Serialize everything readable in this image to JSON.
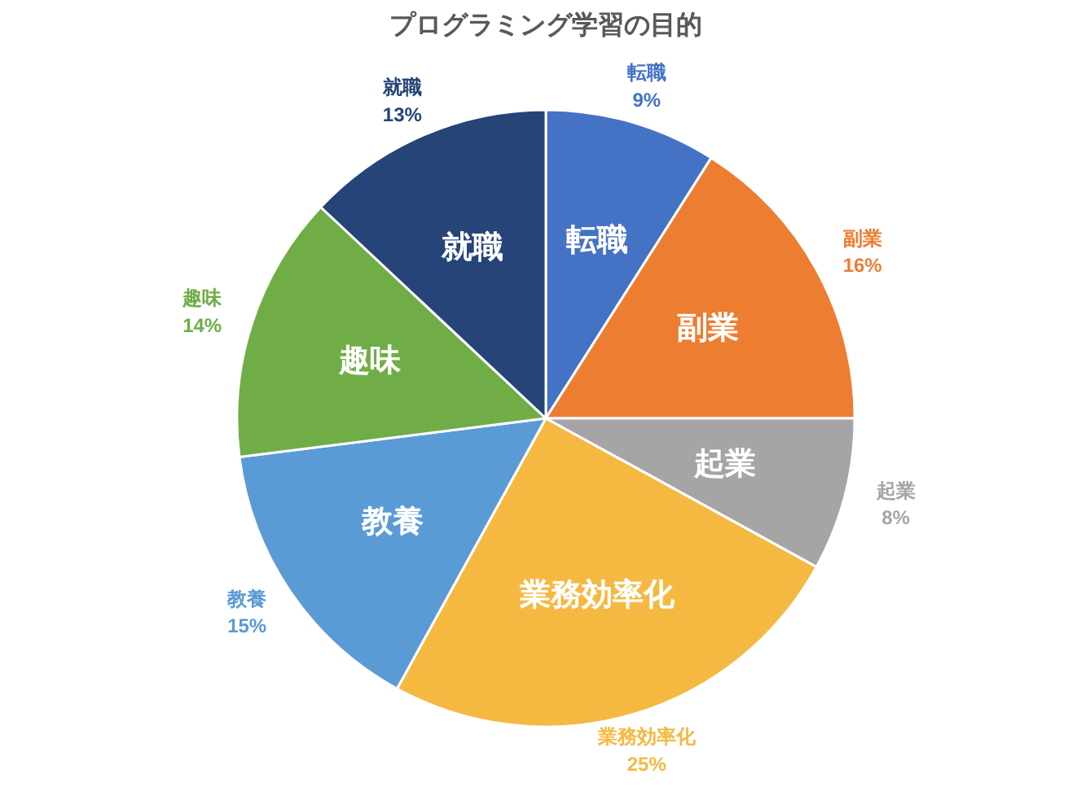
{
  "chart_data": {
    "type": "pie",
    "title": "プログラミング学習の目的",
    "categories": [
      "転職",
      "副業",
      "起業",
      "業務効率化",
      "教養",
      "趣味",
      "就職"
    ],
    "values": [
      9,
      16,
      8,
      25,
      15,
      14,
      13
    ],
    "value_labels": [
      "9%",
      "16%",
      "8%",
      "25%",
      "15%",
      "14%",
      "13%"
    ],
    "colors": [
      "#4472c4",
      "#ed7d31",
      "#a5a5a5",
      "#f5b942",
      "#5b9bd5",
      "#70ad47",
      "#264478"
    ]
  }
}
